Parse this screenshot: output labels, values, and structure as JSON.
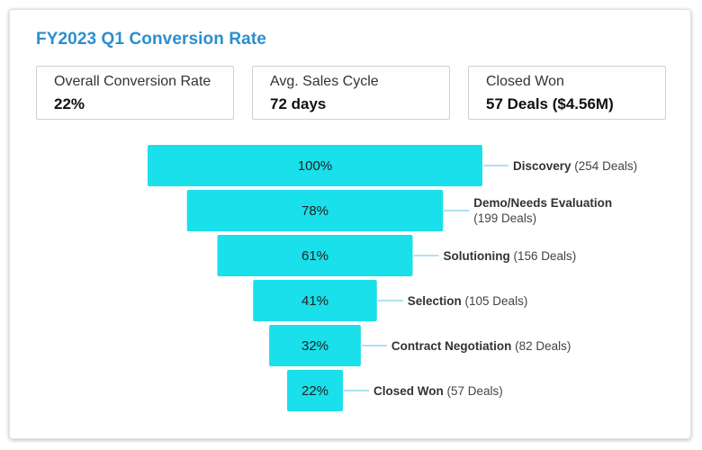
{
  "title": "FY2023 Q1 Conversion Rate",
  "kpis": [
    {
      "label": "Overall Conversion Rate",
      "value": "22%"
    },
    {
      "label": "Avg. Sales Cycle",
      "value": "72 days"
    },
    {
      "label": "Closed Won",
      "value": "57 Deals ($4.56M)"
    }
  ],
  "colors": {
    "bar": "#19e0ea",
    "title": "#2a8fcf",
    "connector": "#5fc3e6"
  },
  "chart_data": {
    "type": "bar",
    "subtype": "funnel",
    "categories": [
      "Discovery",
      "Demo/Needs Evaluation",
      "Solutioning",
      "Selection",
      "Contract Negotiation",
      "Closed Won"
    ],
    "values": [
      100,
      78,
      61,
      41,
      32,
      22
    ],
    "value_labels": [
      "100%",
      "78%",
      "61%",
      "41%",
      "32%",
      "22%"
    ],
    "deals": [
      "(254 Deals)",
      "(199 Deals)",
      "(156 Deals)",
      "(105 Deals)",
      "(82 Deals)",
      "(57 Deals)"
    ]
  }
}
